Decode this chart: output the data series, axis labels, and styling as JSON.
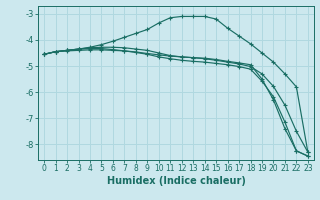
{
  "xlabel": "Humidex (Indice chaleur)",
  "bg_color": "#cce8ee",
  "grid_color": "#b0d8e0",
  "line_color": "#1a6e64",
  "xlim": [
    -0.5,
    23.5
  ],
  "ylim": [
    -8.6,
    -2.7
  ],
  "yticks": [
    -8,
    -7,
    -6,
    -5,
    -4,
    -3
  ],
  "xticks": [
    0,
    1,
    2,
    3,
    4,
    5,
    6,
    7,
    8,
    9,
    10,
    11,
    12,
    13,
    14,
    15,
    16,
    17,
    18,
    19,
    20,
    21,
    22,
    23
  ],
  "series": [
    [
      -4.55,
      -4.45,
      -4.4,
      -4.35,
      -4.28,
      -4.18,
      -4.05,
      -3.9,
      -3.75,
      -3.6,
      -3.35,
      -3.15,
      -3.1,
      -3.1,
      -3.1,
      -3.2,
      -3.55,
      -3.85,
      -4.15,
      -4.5,
      -4.85,
      -5.3,
      -5.8,
      -8.3
    ],
    [
      -4.55,
      -4.45,
      -4.4,
      -4.35,
      -4.3,
      -4.28,
      -4.28,
      -4.3,
      -4.35,
      -4.4,
      -4.5,
      -4.6,
      -4.65,
      -4.68,
      -4.7,
      -4.75,
      -4.82,
      -4.88,
      -4.95,
      -5.5,
      -6.3,
      -7.4,
      -8.25,
      -8.45
    ],
    [
      -4.55,
      -4.45,
      -4.4,
      -4.35,
      -4.33,
      -4.33,
      -4.37,
      -4.42,
      -4.48,
      -4.55,
      -4.65,
      -4.72,
      -4.78,
      -4.82,
      -4.85,
      -4.9,
      -4.95,
      -5.02,
      -5.12,
      -5.58,
      -6.18,
      -7.15,
      -8.25,
      -8.45
    ],
    [
      -4.55,
      -4.45,
      -4.42,
      -4.4,
      -4.38,
      -4.38,
      -4.4,
      -4.42,
      -4.46,
      -4.52,
      -4.57,
      -4.62,
      -4.65,
      -4.68,
      -4.72,
      -4.78,
      -4.85,
      -4.92,
      -5.02,
      -5.3,
      -5.78,
      -6.5,
      -7.5,
      -8.3
    ]
  ]
}
